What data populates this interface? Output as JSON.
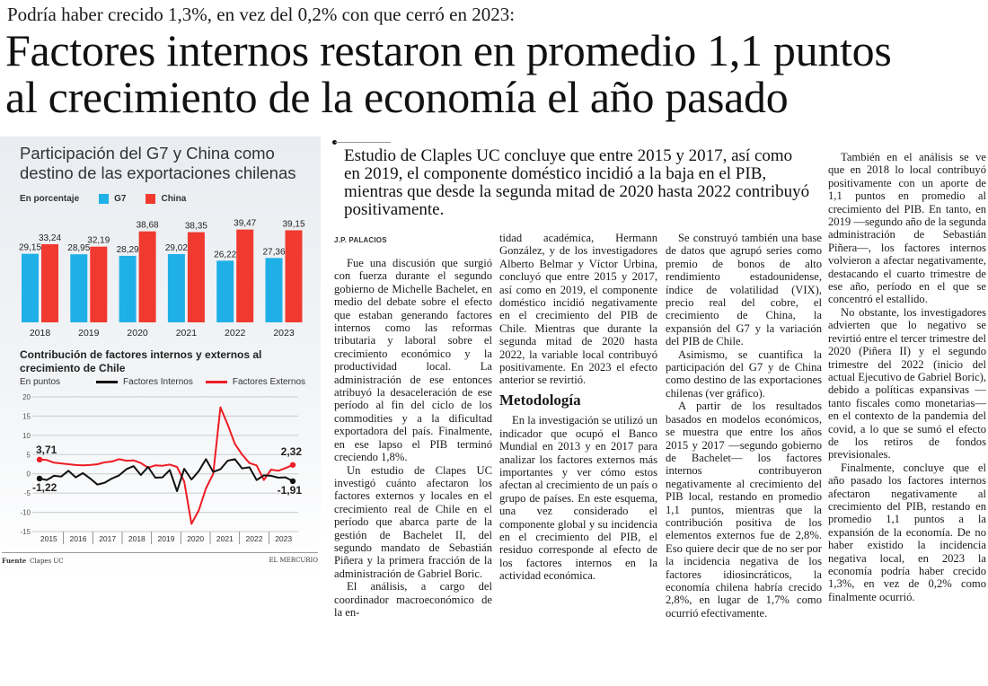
{
  "article": {
    "kicker": "Podría haber crecido 1,3%, en vez del 0,2% con que cerró en 2023:",
    "headline_lines": [
      "Factores internos restaron en promedio 1,1 puntos",
      "al crecimiento de la economía el año pasado"
    ],
    "lead": "Estudio de Claples UC concluye que entre 2015 y 2017, así como en 2019, el componente doméstico incidió a la baja en el PIB, mientras que desde la segunda mitad de 2020 hasta 2022 contribuyó positivamente.",
    "byline": "J.P. PALACIOS",
    "col1": [
      "Fue una discusión que surgió con fuerza durante el segundo gobierno de Michelle Bachelet, en medio del debate sobre el efecto que estaban generando factores internos como las reformas tributaria y laboral sobre el crecimiento económico y la productividad local. La administración de ese entonces atribuyó la desaceleración de ese período al fin del ciclo de los commodities y a la dificultad exportadora del país. Finalmente, en ese lapso el PIB terminó creciendo 1,8%.",
      "Un estudio de Clapes UC investigó cuánto afectaron los factores externos y locales en el crecimiento real de Chile en el período que abarca parte de la gestión de Bachelet II, del segundo mandato de Sebastián Piñera y la primera fracción de la administración de Gabriel Boric.",
      "El análisis, a cargo del coordinador macroeconómico de la en-"
    ],
    "col2_cont": "tidad académica, Hermann González, y de los investigadores Alberto Belmar y Víctor Urbina, concluyó que entre 2015 y 2017, así como en 2019, el componente doméstico incidió negativamente en el crecimiento del PIB de Chile. Mientras que durante la segunda mitad de 2020 hasta 2022, la variable local contribuyó positivamente. En 2023 el efecto anterior se revirtió.",
    "subhead": "Metodología",
    "col2_method": "En la investigación se utilizó un indicador que ocupó el Banco Mundial en 2013 y en 2017 para analizar los factores externos más importantes y ver cómo estos afectan al crecimiento de un país o grupo de países. En este esquema, una vez considerado el componente global y su incidencia en el crecimiento del PIB, el residuo corresponde al efecto de los factores internos en la actividad económica.",
    "col3": [
      "Se construyó también una base de datos que agrupó series como premio de bonos de alto rendimiento estadounidense, índice de volatilidad (VIX), precio real del cobre, el crecimiento de China, la expansión del G7 y la variación del PIB de Chile.",
      "Asimismo, se cuantifica la participación del G7 y de China como destino de las exportaciones chilenas (ver gráfico).",
      "A partir de los resultados basados en modelos económicos, se muestra que entre los años 2015 y 2017 —segundo gobierno de Bachelet— los factores internos contribuyeron negativamente al crecimiento del PIB local, restando en promedio 1,1 puntos, mientras que la contribución positiva de los elementos externos fue de 2,8%. Eso quiere decir que de no ser por la incidencia negativa de los factores idiosincráticos, la economía chilena habría crecido 2,8%, en lugar de 1,7% como ocurrió efectivamente."
    ],
    "col4": [
      "También en el análisis se ve que en 2018 lo local contribuyó positivamente con un aporte de 1,1 puntos en promedio al crecimiento del PIB. En tanto, en 2019 —segundo año de la segunda administración de Sebastián Piñera—, los factores internos volvieron a afectar negativamente, destacando el cuarto trimestre de ese año, período en el que se concentró el estallido.",
      "No obstante, los investigadores advierten que lo negativo se revirtió entre el tercer trimestre del 2020 (Piñera II) y el segundo trimestre del 2022 (inicio del actual Ejecutivo de Gabriel Boric), debido a políticas expansivas —tanto fiscales como monetarias— en el contexto de la pandemia del covid, a lo que se sumó el efecto de los retiros de fondos previsionales.",
      "Finalmente, concluye que el año pasado los factores internos afectaron negativamente al crecimiento del PIB, restando en promedio 1,1 puntos a la expansión de la economía. De no haber existido la incidencia negativa local, en 2023 la economía podría haber crecido 1,3%, en vez de 0,2% como finalmente ocurrió."
    ]
  },
  "graphic": {
    "source_label": "Fuente",
    "source": "Clapes UC",
    "publisher": "EL MERCURIO"
  },
  "colors": {
    "g7": "#1fb0e8",
    "china": "#f03a30",
    "internal": "#111111",
    "external": "#ee1c24"
  },
  "chart_data": [
    {
      "type": "bar",
      "title": "Participación del G7 y China como destino de las exportaciones chilenas",
      "unit_label": "En porcentaje",
      "categories": [
        "2018",
        "2019",
        "2020",
        "2021",
        "2022",
        "2023"
      ],
      "series": [
        {
          "name": "G7",
          "values": [
            29.15,
            28.95,
            28.29,
            29.02,
            26.22,
            27.36
          ],
          "labels": [
            "29,15",
            "28,95",
            "28,29",
            "29,02",
            "26,22",
            "27,36"
          ]
        },
        {
          "name": "China",
          "values": [
            33.24,
            32.19,
            38.68,
            38.35,
            39.47,
            39.15
          ],
          "labels": [
            "33,24",
            "32,19",
            "38,68",
            "38,35",
            "39,47",
            "39,15"
          ]
        }
      ],
      "ylim": [
        0,
        42
      ]
    },
    {
      "type": "line",
      "title": "Contribución de factores internos y externos al crecimiento de Chile",
      "unit_label": "En puntos",
      "x_tick_labels": [
        "2015",
        "2016",
        "2017",
        "2018",
        "2019",
        "2020",
        "2021",
        "2022",
        "2023"
      ],
      "points_per_year": 4,
      "y_ticks": [
        20,
        15,
        10,
        5,
        0,
        -5,
        -10,
        -15
      ],
      "ylim": [
        -15,
        20
      ],
      "grid": true,
      "legend": "top",
      "series": [
        {
          "name": "Factores Internos",
          "values": [
            -1.22,
            -1.6,
            -0.5,
            -0.7,
            0.8,
            -0.9,
            0.2,
            -1.2,
            -2.8,
            -2.3,
            -1.2,
            -0.4,
            1.2,
            2.0,
            -0.3,
            1.8,
            -1.0,
            -0.9,
            1.0,
            -4.5,
            1.3,
            -1.5,
            0.7,
            3.8,
            0.5,
            1.2,
            3.4,
            3.8,
            1.4,
            1.7,
            -1.6,
            -0.4,
            -0.5,
            -1.0,
            -0.9,
            -1.91
          ],
          "start_label": "-1,22",
          "end_label": "-1,91"
        },
        {
          "name": "Factores Externos",
          "values": [
            3.71,
            3.6,
            2.9,
            2.7,
            2.5,
            2.3,
            2.2,
            2.3,
            2.5,
            3.0,
            3.2,
            3.8,
            3.4,
            3.5,
            2.8,
            1.6,
            2.2,
            2.1,
            2.4,
            1.8,
            -2.0,
            -13.0,
            -9.5,
            -3.8,
            0.0,
            17.3,
            12.8,
            7.8,
            5.0,
            2.8,
            2.2,
            -1.6,
            1.1,
            0.8,
            1.5,
            2.32
          ],
          "start_label": "3,71",
          "end_label": "2,32"
        }
      ]
    }
  ]
}
